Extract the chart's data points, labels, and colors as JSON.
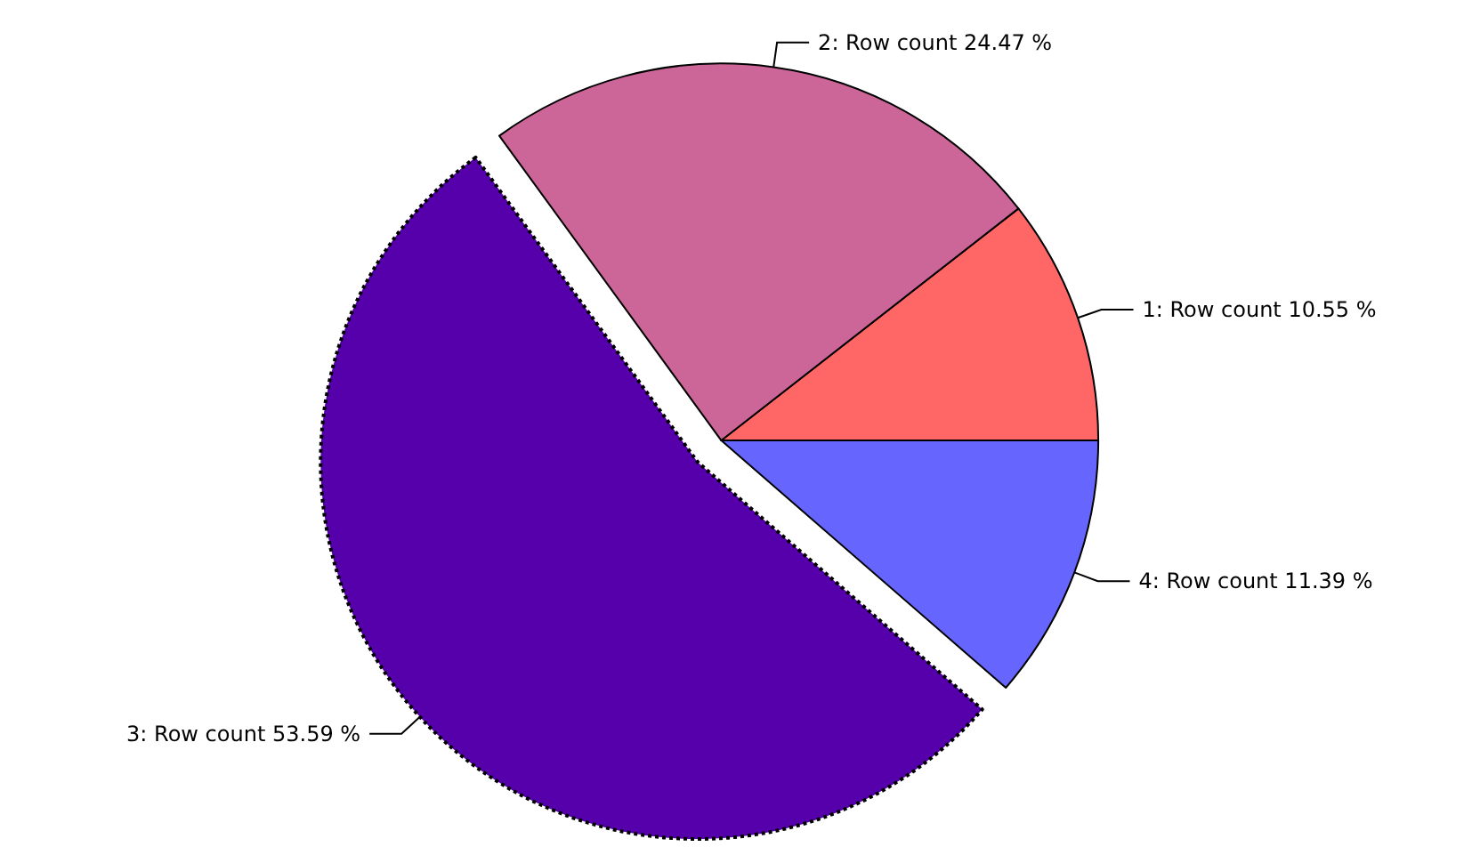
{
  "chart_data": {
    "type": "pie",
    "categories": [
      "1: Row count",
      "2: Row count",
      "3: Row count",
      "4: Row count"
    ],
    "values": [
      10.55,
      24.47,
      53.59,
      11.39
    ],
    "value_labels": [
      "10.55 %",
      "24.47 %",
      "53.59 %",
      "11.39 %"
    ],
    "colors": [
      "#ff6666",
      "#cc6699",
      "#5500aa",
      "#6666ff"
    ],
    "legend": false
  }
}
